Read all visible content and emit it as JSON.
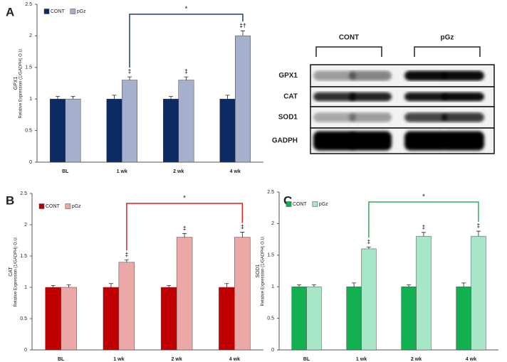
{
  "chart_data": [
    {
      "type": "bar",
      "panel": "A",
      "ylabel": [
        "GPX1",
        "Relative Expression (1/GADPH) O.U."
      ],
      "categories": [
        "BL",
        "1 wk",
        "2 wk",
        "4 wk"
      ],
      "ylim": [
        0,
        2.5
      ],
      "yticks": [
        0,
        0.5,
        1,
        1.5,
        2,
        2.5
      ],
      "series": [
        {
          "name": "CONT",
          "color": "#0e2a63",
          "values": [
            1,
            1,
            1,
            1
          ],
          "errors": [
            0.04,
            0.06,
            0.04,
            0.06
          ]
        },
        {
          "name": "pGz",
          "color": "#a5b0cc",
          "values": [
            1,
            1.3,
            1.3,
            2.0
          ],
          "errors": [
            0.04,
            0.05,
            0.05,
            0.08
          ],
          "significance": [
            null,
            "‡",
            "‡",
            "‡†"
          ]
        }
      ],
      "bracket_label": "*",
      "bracket_color": "#1f3c78"
    },
    {
      "type": "bar",
      "panel": "B",
      "ylabel": [
        "CAT",
        "Relative Expression (1/GADPH) O.U."
      ],
      "categories": [
        "BL",
        "1 wk",
        "2 wk",
        "4 wk"
      ],
      "ylim": [
        0,
        2.5
      ],
      "yticks": [
        0,
        0.5,
        1,
        1.5,
        2,
        2.5
      ],
      "series": [
        {
          "name": "CONT",
          "color": "#c00000",
          "values": [
            1,
            1,
            1,
            1
          ],
          "errors": [
            0.03,
            0.06,
            0.03,
            0.06
          ]
        },
        {
          "name": "pGz",
          "color": "#eba8a6",
          "values": [
            1,
            1.4,
            1.8,
            1.8
          ],
          "errors": [
            0.04,
            0.04,
            0.06,
            0.08
          ],
          "significance": [
            null,
            "‡",
            "‡",
            "‡"
          ]
        }
      ],
      "bracket_label": "*",
      "bracket_color": "#e02020"
    },
    {
      "type": "bar",
      "panel": "C",
      "ylabel": [
        "SOD1",
        "Relative Expression (1/GADPH) O.U."
      ],
      "categories": [
        "BL",
        "1 wk",
        "2 wk",
        "4 wk"
      ],
      "ylim": [
        0,
        2.5
      ],
      "yticks": [
        0,
        0.5,
        1,
        1.5,
        2,
        2.5
      ],
      "series": [
        {
          "name": "CONT",
          "color": "#12b050",
          "values": [
            1,
            1,
            1,
            1
          ],
          "errors": [
            0.03,
            0.06,
            0.03,
            0.06
          ]
        },
        {
          "name": "pGz",
          "color": "#a8e6c8",
          "values": [
            1,
            1.6,
            1.8,
            1.8
          ],
          "errors": [
            0.03,
            0.03,
            0.06,
            0.08
          ],
          "significance": [
            null,
            "‡",
            "‡",
            "‡"
          ]
        }
      ],
      "bracket_label": "*",
      "bracket_color": "#2ab060"
    }
  ],
  "blot": {
    "groups": [
      "CONT",
      "pGz"
    ],
    "rows": [
      "GPX1",
      "CAT",
      "SOD1",
      "GADPH"
    ]
  }
}
